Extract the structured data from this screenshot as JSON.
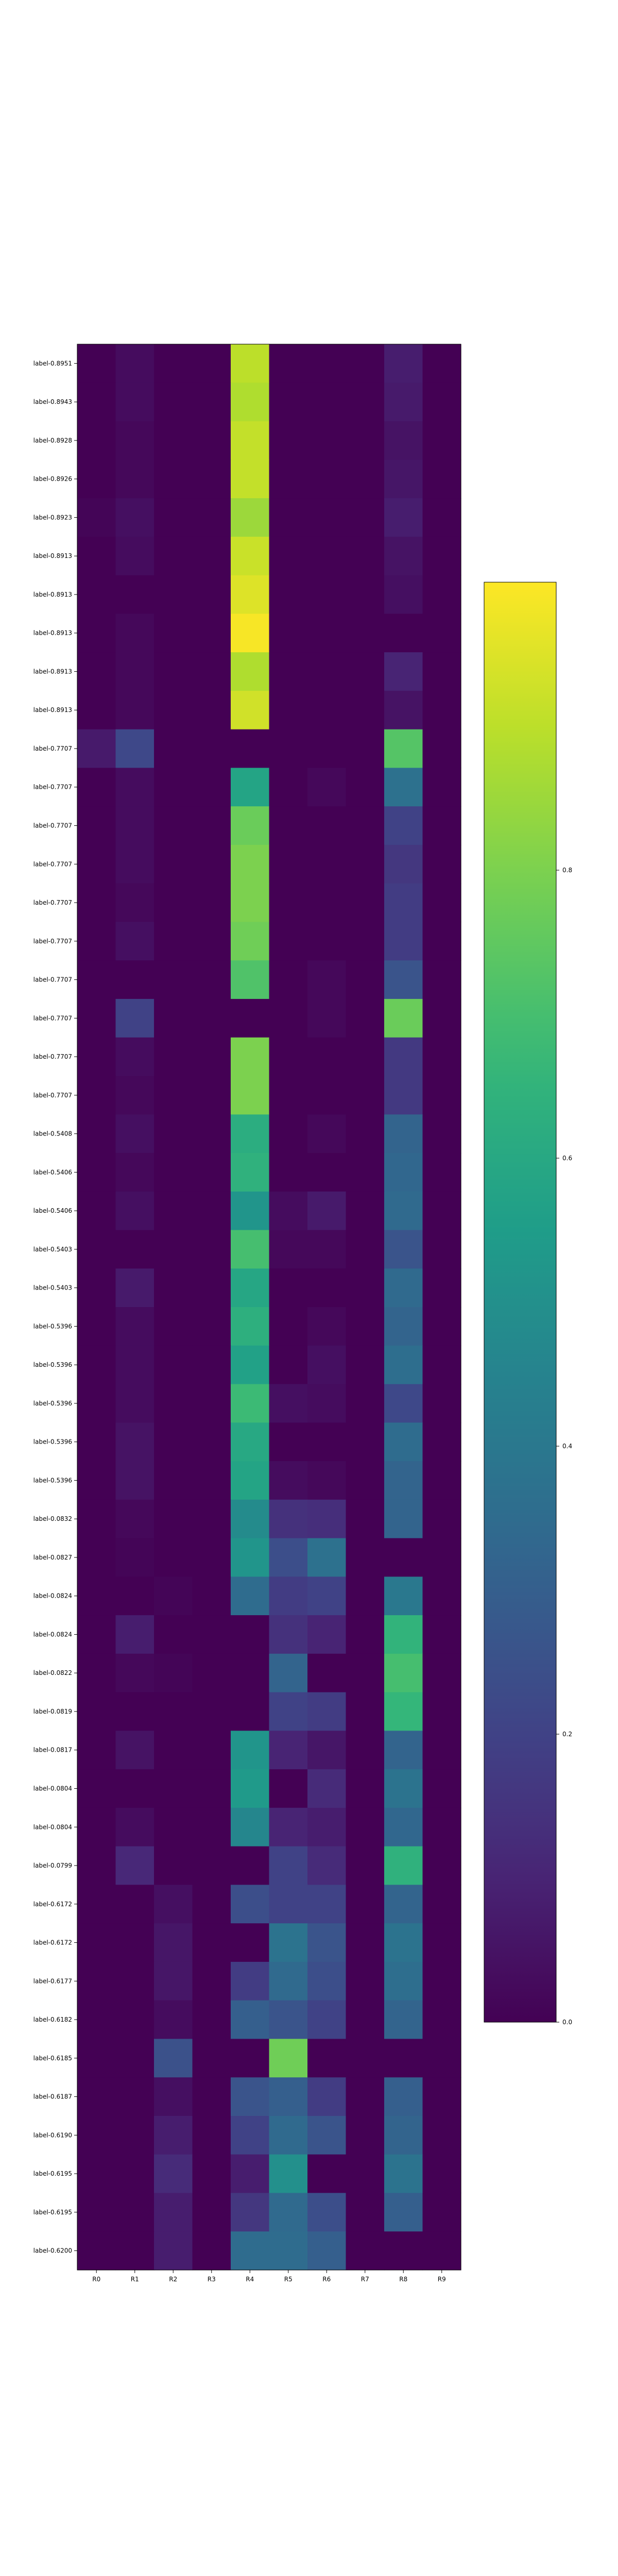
{
  "chart_data": {
    "type": "heatmap",
    "title": "",
    "xlabel": "",
    "ylabel": "",
    "columns": [
      "R0",
      "R1",
      "R2",
      "R3",
      "R4",
      "R5",
      "R6",
      "R7",
      "R8",
      "R9"
    ],
    "rows": [
      "label-0.8951",
      "label-0.8943",
      "label-0.8928",
      "label-0.8926",
      "label-0.8923",
      "label-0.8913",
      "label-0.8913",
      "label-0.8913",
      "label-0.8913",
      "label-0.8913",
      "label-0.7707",
      "label-0.7707",
      "label-0.7707",
      "label-0.7707",
      "label-0.7707",
      "label-0.7707",
      "label-0.7707",
      "label-0.7707",
      "label-0.7707",
      "label-0.7707",
      "label-0.5408",
      "label-0.5406",
      "label-0.5406",
      "label-0.5403",
      "label-0.5403",
      "label-0.5396",
      "label-0.5396",
      "label-0.5396",
      "label-0.5396",
      "label-0.5396",
      "label-0.0832",
      "label-0.0827",
      "label-0.0824",
      "label-0.0824",
      "label-0.0822",
      "label-0.0819",
      "label-0.0817",
      "label-0.0804",
      "label-0.0804",
      "label-0.0799",
      "label-0.6172",
      "label-0.6172",
      "label-0.6177",
      "label-0.6182",
      "label-0.6185",
      "label-0.6187",
      "label-0.6190",
      "label-0.6195",
      "label-0.6195",
      "label-0.6200"
    ],
    "values": [
      [
        0.0,
        0.03,
        0.0,
        0.0,
        0.9,
        0.0,
        0.0,
        0.0,
        0.08,
        0.0
      ],
      [
        0.0,
        0.03,
        0.0,
        0.0,
        0.88,
        0.0,
        0.0,
        0.0,
        0.07,
        0.0
      ],
      [
        0.0,
        0.02,
        0.0,
        0.0,
        0.91,
        0.0,
        0.0,
        0.0,
        0.05,
        0.0
      ],
      [
        0.0,
        0.02,
        0.0,
        0.0,
        0.91,
        0.0,
        0.0,
        0.0,
        0.06,
        0.0
      ],
      [
        0.01,
        0.04,
        0.0,
        0.0,
        0.85,
        0.0,
        0.0,
        0.0,
        0.08,
        0.0
      ],
      [
        0.0,
        0.03,
        0.0,
        0.0,
        0.92,
        0.0,
        0.0,
        0.0,
        0.05,
        0.0
      ],
      [
        0.0,
        0.0,
        0.0,
        0.0,
        0.95,
        0.0,
        0.0,
        0.0,
        0.04,
        0.0
      ],
      [
        0.0,
        0.02,
        0.0,
        0.0,
        0.99,
        0.0,
        0.0,
        0.0,
        0.0,
        0.0
      ],
      [
        0.0,
        0.02,
        0.0,
        0.0,
        0.88,
        0.0,
        0.0,
        0.0,
        0.1,
        0.0
      ],
      [
        0.0,
        0.02,
        0.0,
        0.0,
        0.93,
        0.0,
        0.0,
        0.0,
        0.05,
        0.0
      ],
      [
        0.07,
        0.22,
        0.0,
        0.0,
        0.0,
        0.0,
        0.0,
        0.0,
        0.73,
        0.0
      ],
      [
        0.0,
        0.03,
        0.0,
        0.0,
        0.58,
        0.0,
        0.02,
        0.0,
        0.37,
        0.0
      ],
      [
        0.0,
        0.03,
        0.0,
        0.0,
        0.77,
        0.0,
        0.0,
        0.0,
        0.2,
        0.0
      ],
      [
        0.0,
        0.03,
        0.0,
        0.0,
        0.8,
        0.0,
        0.0,
        0.0,
        0.16,
        0.0
      ],
      [
        0.0,
        0.02,
        0.0,
        0.0,
        0.8,
        0.0,
        0.0,
        0.0,
        0.18,
        0.0
      ],
      [
        0.0,
        0.04,
        0.0,
        0.0,
        0.78,
        0.0,
        0.0,
        0.0,
        0.18,
        0.0
      ],
      [
        0.0,
        0.0,
        0.0,
        0.0,
        0.72,
        0.0,
        0.02,
        0.0,
        0.26,
        0.0
      ],
      [
        0.0,
        0.2,
        0.0,
        0.0,
        0.0,
        0.0,
        0.02,
        0.0,
        0.77,
        0.0
      ],
      [
        0.0,
        0.03,
        0.0,
        0.0,
        0.8,
        0.0,
        0.0,
        0.0,
        0.17,
        0.0
      ],
      [
        0.0,
        0.02,
        0.0,
        0.0,
        0.8,
        0.0,
        0.0,
        0.0,
        0.17,
        0.0
      ],
      [
        0.0,
        0.04,
        0.0,
        0.0,
        0.62,
        0.0,
        0.02,
        0.0,
        0.32,
        0.0
      ],
      [
        0.0,
        0.02,
        0.0,
        0.0,
        0.64,
        0.0,
        0.0,
        0.0,
        0.33,
        0.0
      ],
      [
        0.0,
        0.04,
        0.0,
        0.0,
        0.52,
        0.03,
        0.07,
        0.0,
        0.34,
        0.0
      ],
      [
        0.0,
        0.0,
        0.0,
        0.0,
        0.7,
        0.02,
        0.02,
        0.0,
        0.26,
        0.0
      ],
      [
        0.0,
        0.07,
        0.0,
        0.0,
        0.59,
        0.0,
        0.0,
        0.0,
        0.34,
        0.0
      ],
      [
        0.0,
        0.03,
        0.0,
        0.0,
        0.63,
        0.0,
        0.02,
        0.0,
        0.32,
        0.0
      ],
      [
        0.0,
        0.03,
        0.0,
        0.0,
        0.57,
        0.0,
        0.04,
        0.0,
        0.36,
        0.0
      ],
      [
        0.0,
        0.03,
        0.0,
        0.0,
        0.68,
        0.04,
        0.03,
        0.0,
        0.22,
        0.0
      ],
      [
        0.0,
        0.05,
        0.0,
        0.0,
        0.6,
        0.0,
        0.0,
        0.0,
        0.35,
        0.0
      ],
      [
        0.0,
        0.05,
        0.0,
        0.0,
        0.58,
        0.03,
        0.02,
        0.0,
        0.32,
        0.0
      ],
      [
        0.0,
        0.02,
        0.0,
        0.0,
        0.48,
        0.14,
        0.13,
        0.0,
        0.32,
        0.0
      ],
      [
        0.0,
        0.01,
        0.0,
        0.0,
        0.52,
        0.24,
        0.37,
        0.0,
        0.0,
        0.0
      ],
      [
        0.0,
        0.0,
        0.01,
        0.0,
        0.35,
        0.18,
        0.2,
        0.0,
        0.4,
        0.0
      ],
      [
        0.0,
        0.08,
        0.0,
        0.0,
        0.0,
        0.14,
        0.1,
        0.0,
        0.65,
        0.0
      ],
      [
        0.0,
        0.02,
        0.01,
        0.0,
        0.0,
        0.32,
        0.0,
        0.0,
        0.7,
        0.0
      ],
      [
        0.0,
        0.0,
        0.0,
        0.0,
        0.0,
        0.2,
        0.18,
        0.0,
        0.66,
        0.0
      ],
      [
        0.0,
        0.05,
        0.0,
        0.0,
        0.52,
        0.1,
        0.06,
        0.0,
        0.32,
        0.0
      ],
      [
        0.0,
        0.0,
        0.0,
        0.0,
        0.54,
        0.0,
        0.12,
        0.0,
        0.38,
        0.0
      ],
      [
        0.0,
        0.03,
        0.0,
        0.0,
        0.46,
        0.1,
        0.08,
        0.0,
        0.33,
        0.0
      ],
      [
        0.0,
        0.11,
        0.0,
        0.0,
        0.0,
        0.2,
        0.12,
        0.0,
        0.64,
        0.0
      ],
      [
        0.0,
        0.0,
        0.04,
        0.0,
        0.24,
        0.2,
        0.2,
        0.0,
        0.32,
        0.0
      ],
      [
        0.0,
        0.0,
        0.06,
        0.0,
        0.0,
        0.38,
        0.26,
        0.0,
        0.38,
        0.0
      ],
      [
        0.0,
        0.0,
        0.06,
        0.0,
        0.18,
        0.34,
        0.24,
        0.0,
        0.36,
        0.0
      ],
      [
        0.0,
        0.0,
        0.03,
        0.0,
        0.3,
        0.26,
        0.2,
        0.0,
        0.32,
        0.0
      ],
      [
        0.0,
        0.0,
        0.25,
        0.0,
        0.0,
        0.78,
        0.0,
        0.0,
        0.0,
        0.0
      ],
      [
        0.0,
        0.0,
        0.04,
        0.0,
        0.26,
        0.3,
        0.18,
        0.0,
        0.3,
        0.0
      ],
      [
        0.0,
        0.0,
        0.08,
        0.0,
        0.2,
        0.34,
        0.26,
        0.0,
        0.32,
        0.0
      ],
      [
        0.0,
        0.0,
        0.12,
        0.0,
        0.08,
        0.5,
        0.0,
        0.0,
        0.38,
        0.0
      ],
      [
        0.0,
        0.0,
        0.08,
        0.0,
        0.16,
        0.34,
        0.24,
        0.0,
        0.3,
        0.0
      ],
      [
        0.0,
        0.0,
        0.08,
        0.0,
        0.35,
        0.35,
        0.3,
        0.0,
        0.0,
        0.0
      ]
    ],
    "colormap": "viridis",
    "vmin": 0,
    "vmax": 1,
    "colorbar_ticks": [
      "0.0",
      "0.2",
      "0.4",
      "0.6",
      "0.8"
    ],
    "colorbar_tick_values": [
      0.0,
      0.2,
      0.4,
      0.6,
      0.8
    ],
    "colorbar_max": 1.0,
    "legend": "right"
  }
}
